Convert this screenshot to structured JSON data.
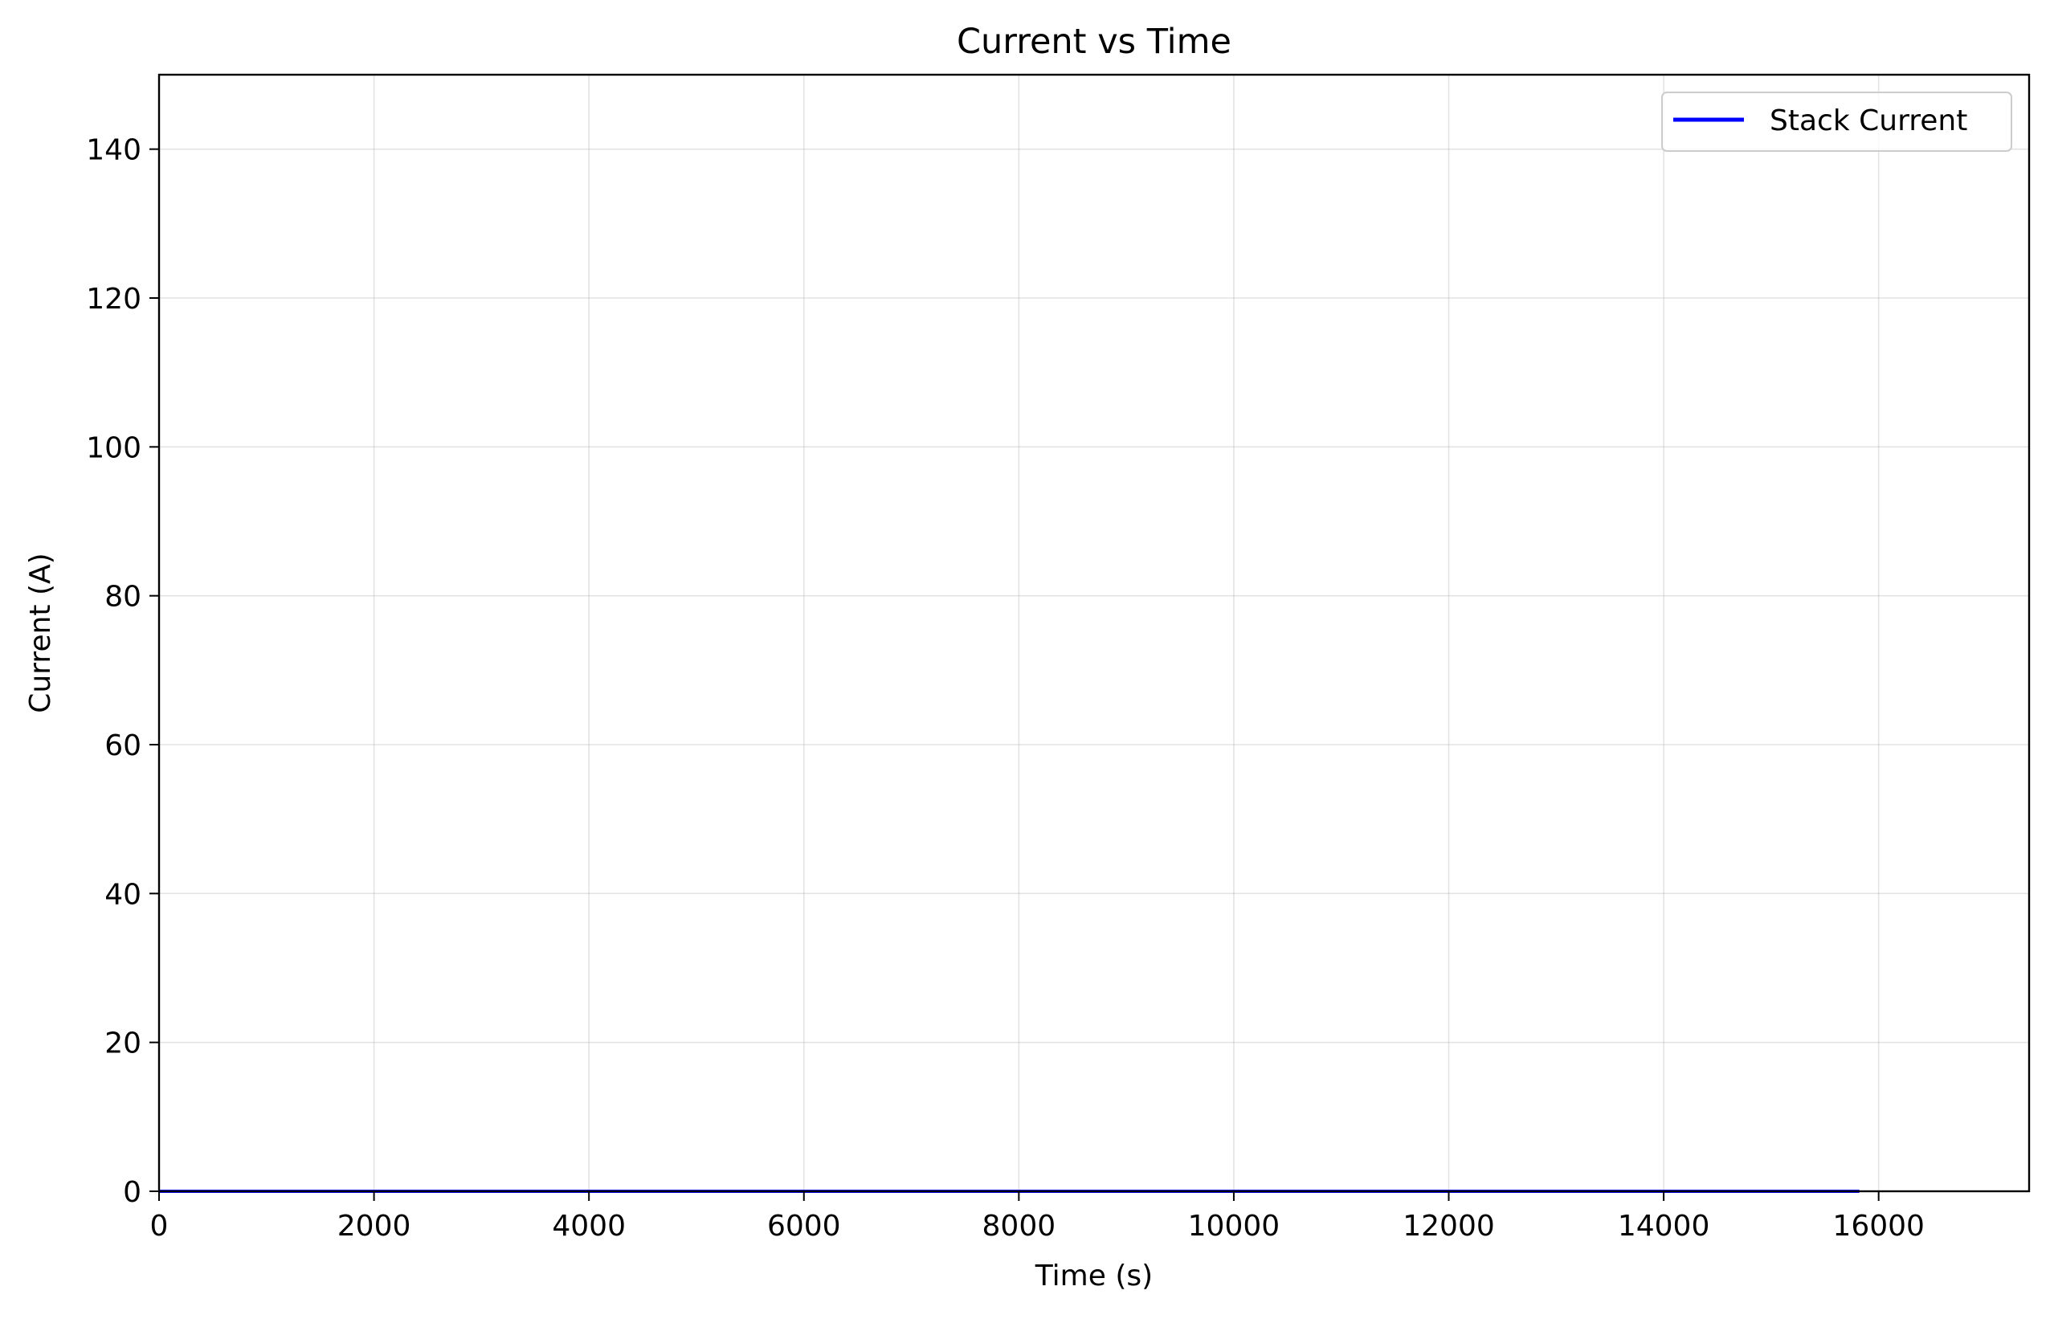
{
  "chart_data": {
    "type": "line",
    "title": "Current vs Time",
    "xlabel": "Time (s)",
    "ylabel": "Current (A)",
    "xlim": [
      0,
      17400
    ],
    "ylim": [
      0,
      150
    ],
    "xticks": [
      0,
      2000,
      4000,
      6000,
      8000,
      10000,
      12000,
      14000,
      16000
    ],
    "yticks": [
      0,
      20,
      40,
      60,
      80,
      100,
      120,
      140
    ],
    "grid": true,
    "legend_position": "upper right",
    "series": [
      {
        "name": "Stack Current",
        "color": "#0000ff",
        "x": [
          0,
          15820
        ],
        "y": [
          0,
          0
        ]
      }
    ]
  }
}
